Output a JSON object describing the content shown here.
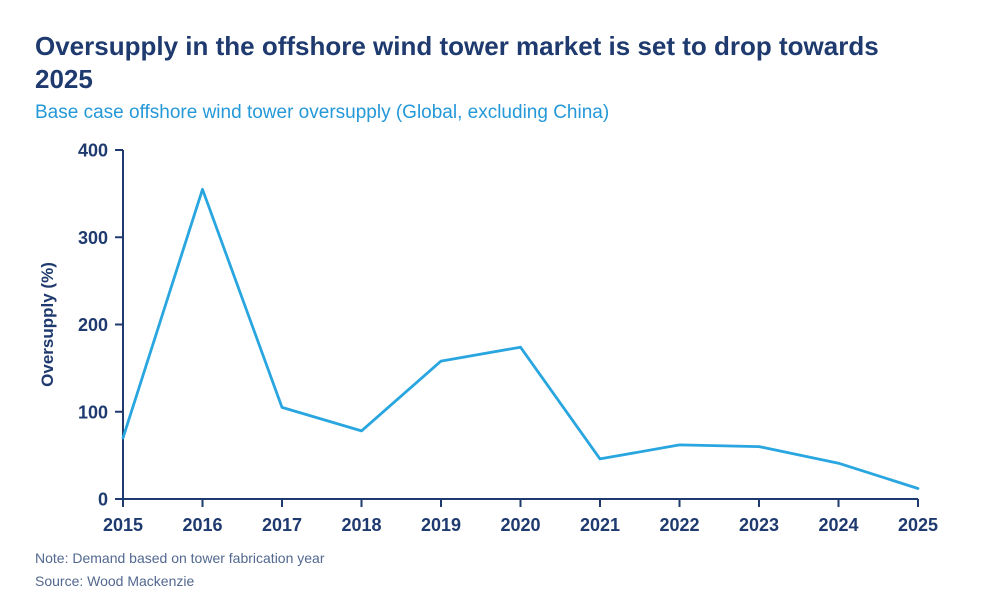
{
  "header": {
    "title_line1": "Oversupply in the offshore wind tower market is set to drop towards",
    "title_line2": "2025",
    "subtitle": "Base case offshore wind tower oversupply (Global, excluding China)"
  },
  "chart_data": {
    "type": "line",
    "title": "Base case offshore wind tower oversupply (Global, excluding China)",
    "x": [
      2015,
      2016,
      2017,
      2018,
      2019,
      2020,
      2021,
      2022,
      2023,
      2024,
      2025
    ],
    "series": [
      {
        "name": "Base case offshore wind tower oversupply (Global, excluding China)",
        "values": [
          70,
          355,
          105,
          78,
          158,
          174,
          46,
          62,
          60,
          41,
          12
        ]
      }
    ],
    "xlabel": "",
    "ylabel": "Oversupply (%)",
    "ylim": [
      0,
      400
    ],
    "yticks": [
      0,
      100,
      200,
      300,
      400
    ],
    "grid": false,
    "legend": "none",
    "line_color": "#29a6e0",
    "axis_color": "#1e3a6e"
  },
  "footer": {
    "note": "Note: Demand based on tower fabrication year",
    "source": "Source: Wood Mackenzie"
  },
  "colors": {
    "title_navy": "#1e3a6e",
    "subtitle_blue": "#2598d8",
    "line_blue": "#29a6e0",
    "note_gray": "#52688f"
  }
}
